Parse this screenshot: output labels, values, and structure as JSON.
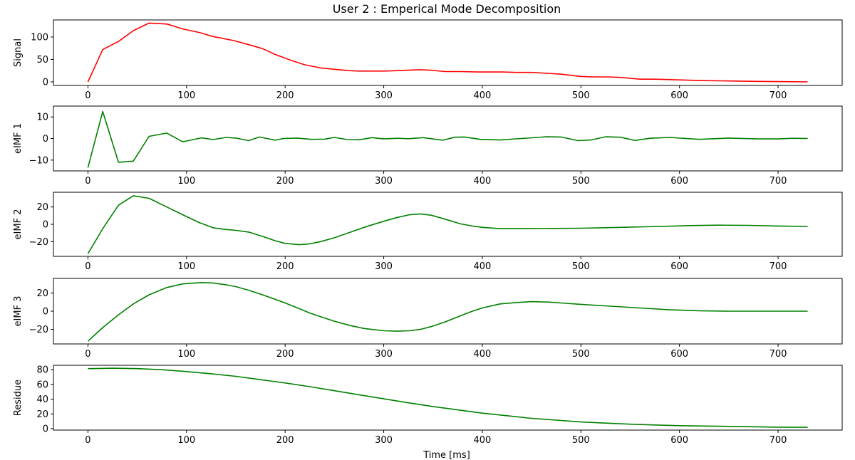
{
  "title": "User 2 : Emperical Mode Decomposition",
  "xlabel": "Time [ms]",
  "chart_data": [
    {
      "type": "line",
      "ylabel": "Signal",
      "xlim": [
        -35,
        765
      ],
      "ylim": [
        -8,
        138
      ],
      "xticks": [
        0,
        100,
        200,
        300,
        400,
        500,
        600,
        700
      ],
      "yticks": [
        0,
        50,
        100
      ],
      "series": [
        {
          "color": "#ff0000",
          "x": [
            0,
            15,
            31,
            46,
            62,
            80,
            96,
            113,
            127,
            148,
            163,
            177,
            190,
            206,
            220,
            236,
            250,
            265,
            275,
            290,
            300,
            314,
            325,
            337,
            348,
            362,
            378,
            395,
            408,
            420,
            434,
            450,
            467,
            480,
            500,
            513,
            527,
            540,
            560,
            575,
            591,
            620,
            650,
            680,
            700,
            730
          ],
          "y": [
            0,
            72,
            90,
            114,
            131,
            129,
            118,
            110,
            101,
            92,
            83,
            74,
            61,
            48,
            38,
            31,
            28,
            25,
            24,
            24,
            24,
            25,
            26,
            27,
            26,
            23,
            23,
            22,
            22,
            22,
            21,
            21,
            19,
            17,
            12,
            11,
            11,
            10,
            6,
            6,
            5,
            3,
            2,
            1,
            0.5,
            0
          ]
        }
      ]
    },
    {
      "type": "line",
      "ylabel": "eIMF 1",
      "xlim": [
        -35,
        765
      ],
      "ylim": [
        -15,
        15
      ],
      "xticks": [
        0,
        100,
        200,
        300,
        400,
        500,
        600,
        700
      ],
      "yticks": [
        -10,
        0,
        10
      ],
      "series": [
        {
          "color": "#008000",
          "x": [
            0,
            15,
            31,
            46,
            62,
            80,
            96,
            115,
            127,
            140,
            150,
            163,
            174,
            190,
            198,
            212,
            227,
            240,
            250,
            263,
            275,
            288,
            300,
            314,
            325,
            340,
            360,
            372,
            382,
            398,
            418,
            440,
            465,
            480,
            497,
            510,
            525,
            540,
            555,
            570,
            590,
            620,
            650,
            680,
            700,
            715,
            730
          ],
          "y": [
            -13.5,
            12.5,
            -11,
            -10.5,
            1,
            2.5,
            -1.5,
            0.3,
            -0.5,
            0.5,
            0.2,
            -1,
            0.7,
            -0.8,
            0,
            0.2,
            -0.4,
            -0.3,
            0.5,
            -0.5,
            -0.6,
            0.4,
            -0.2,
            0.1,
            -0.1,
            0.4,
            -0.8,
            0.6,
            0.7,
            -0.4,
            -0.7,
            0,
            0.8,
            0.7,
            -1,
            -0.7,
            0.8,
            0.6,
            -0.9,
            0.1,
            0.5,
            -0.4,
            0.2,
            -0.2,
            -0.2,
            0.1,
            0
          ]
        }
      ]
    },
    {
      "type": "line",
      "ylabel": "eIMF 2",
      "xlim": [
        -35,
        765
      ],
      "ylim": [
        -37,
        37
      ],
      "xticks": [
        0,
        100,
        200,
        300,
        400,
        500,
        600,
        700
      ],
      "yticks": [
        -20,
        0,
        20
      ],
      "series": [
        {
          "color": "#008000",
          "x": [
            0,
            15,
            31,
            46,
            62,
            80,
            100,
            113,
            127,
            140,
            150,
            163,
            177,
            190,
            200,
            214,
            225,
            236,
            250,
            265,
            280,
            300,
            314,
            326,
            337,
            348,
            362,
            378,
            390,
            400,
            418,
            440,
            470,
            500,
            540,
            580,
            610,
            640,
            670,
            700,
            730
          ],
          "y": [
            -34,
            -5,
            22,
            33,
            30,
            20,
            9,
            2,
            -4,
            -6,
            -7,
            -9,
            -14,
            -19,
            -22,
            -23.5,
            -22.5,
            -20,
            -15.5,
            -9.5,
            -3.5,
            3.5,
            8,
            11,
            12,
            10.5,
            6,
            0.5,
            -2,
            -3.5,
            -5,
            -5,
            -4.8,
            -4.5,
            -3.5,
            -2.5,
            -1.5,
            -1,
            -1.2,
            -2,
            -2.5
          ]
        }
      ]
    },
    {
      "type": "line",
      "ylabel": "eIMF 3",
      "xlim": [
        -35,
        765
      ],
      "ylim": [
        -36,
        36
      ],
      "xticks": [
        0,
        100,
        200,
        300,
        400,
        500,
        600,
        700
      ],
      "yticks": [
        -20,
        0,
        20
      ],
      "series": [
        {
          "color": "#008000",
          "x": [
            0,
            15,
            31,
            46,
            62,
            80,
            96,
            115,
            127,
            140,
            150,
            163,
            177,
            190,
            200,
            214,
            225,
            236,
            250,
            265,
            280,
            300,
            314,
            326,
            337,
            348,
            362,
            378,
            390,
            400,
            418,
            434,
            450,
            467,
            480,
            500,
            530,
            560,
            590,
            620,
            650,
            680,
            700,
            730
          ],
          "y": [
            -33,
            -18,
            -4,
            8,
            18,
            26,
            30,
            31.5,
            31,
            29,
            27,
            23,
            18,
            13,
            9,
            3,
            -2,
            -6,
            -11,
            -15.5,
            -19,
            -21.5,
            -22,
            -21.5,
            -20,
            -17,
            -12,
            -5,
            0,
            3.5,
            8,
            9.5,
            10.5,
            10,
            9,
            7.5,
            5.5,
            3.5,
            1.5,
            0.5,
            0,
            0,
            0,
            0
          ]
        }
      ]
    },
    {
      "type": "line",
      "ylabel": "Residue",
      "xlim": [
        -35,
        765
      ],
      "ylim": [
        -2,
        86
      ],
      "xticks": [
        0,
        100,
        200,
        300,
        400,
        500,
        600,
        700
      ],
      "yticks": [
        0,
        20,
        40,
        60,
        80
      ],
      "series": [
        {
          "color": "#008000",
          "x": [
            0,
            25,
            50,
            75,
            100,
            125,
            150,
            175,
            200,
            225,
            250,
            275,
            300,
            325,
            350,
            375,
            400,
            425,
            450,
            475,
            500,
            525,
            550,
            575,
            600,
            625,
            650,
            675,
            700,
            730
          ],
          "y": [
            81.5,
            82,
            81.5,
            80,
            77.5,
            74.5,
            71,
            66.5,
            62,
            57,
            51.5,
            46,
            40.5,
            35,
            30,
            25.5,
            21,
            17.5,
            14,
            11.5,
            9,
            7.5,
            6,
            5,
            4,
            3.5,
            3,
            2.5,
            2,
            1.8
          ]
        }
      ]
    }
  ]
}
